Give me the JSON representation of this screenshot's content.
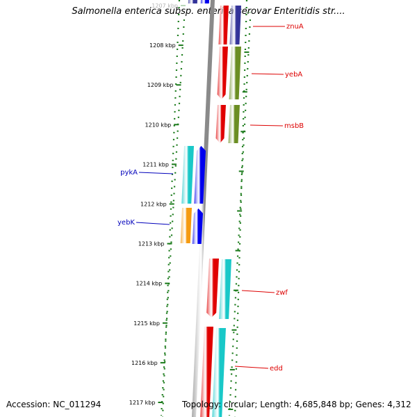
{
  "title": "Salmonella enterica subsp. enterica serovar Enteritidis str....",
  "accession_label": "Accession: NC_011294",
  "topology_label": "Topology: circular; Length: 4,685,848 bp; Genes: 4,312",
  "backbone": {
    "color": "#8a8a8a"
  },
  "ticks": [
    {
      "label": "1207 kbp",
      "faded": true
    },
    {
      "label": "1208 kbp"
    },
    {
      "label": "1209 kbp"
    },
    {
      "label": "1210 kbp"
    },
    {
      "label": "1211 kbp"
    },
    {
      "label": "1212 kbp"
    },
    {
      "label": "1213 kbp"
    },
    {
      "label": "1214 kbp"
    },
    {
      "label": "1215 kbp"
    },
    {
      "label": "1216 kbp"
    },
    {
      "label": "1217 kbp"
    }
  ],
  "gene_labels": [
    {
      "name": "znuA",
      "color": "#dd0000"
    },
    {
      "name": "yebA",
      "color": "#dd0000"
    },
    {
      "name": "msbB",
      "color": "#dd0000"
    },
    {
      "name": "pykA",
      "color": "#0000bb"
    },
    {
      "name": "yebK",
      "color": "#0000bb"
    },
    {
      "name": "zwf",
      "color": "#dd0000"
    },
    {
      "name": "edd",
      "color": "#dd0000"
    }
  ],
  "colors": {
    "red": "#e00000",
    "blue": "#0000ee",
    "cyan": "#19c8c8",
    "olive": "#6b8e23",
    "orange": "#f59a10",
    "navy": "#333399",
    "tick_green": "#1a7a1a"
  }
}
